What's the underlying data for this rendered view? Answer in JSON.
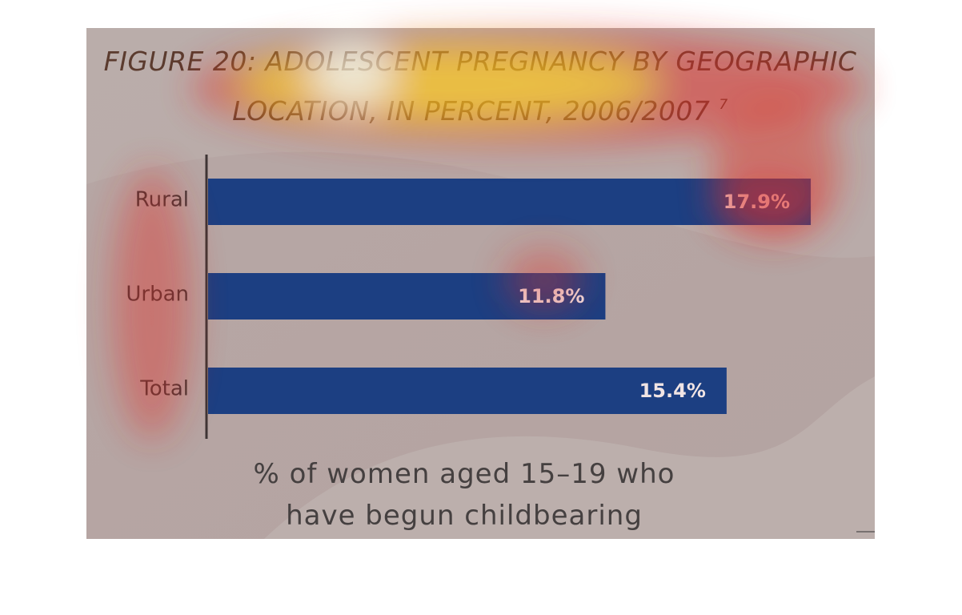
{
  "chart_data": {
    "type": "bar",
    "orientation": "horizontal",
    "title": "FIGURE 20: ADOLESCENT PREGNANCY BY GEOGRAPHIC LOCATION, IN PERCENT, 2006/2007",
    "title_footnote": "7",
    "categories": [
      "Rural",
      "Urban",
      "Total"
    ],
    "values": [
      17.9,
      11.8,
      15.4
    ],
    "value_labels": [
      "17.9%",
      "11.8%",
      "15.4%"
    ],
    "color": "#1c3f82",
    "x_label": "% of women aged 15–19 who have begun childbearing"
  }
}
